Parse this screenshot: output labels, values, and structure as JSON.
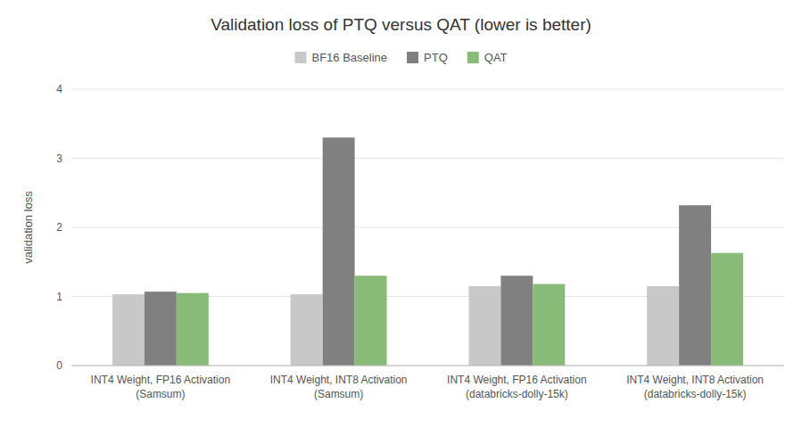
{
  "chart_data": {
    "type": "bar",
    "title": "Validation loss of PTQ versus QAT (lower is better)",
    "y_label": "validation loss",
    "categories": [
      "INT4 Weight, FP16 Activation\n(Samsum)",
      "INT4 Weight, INT8 Activation\n(Samsum)",
      "INT4 Weight, FP16 Activation\n(databricks-dolly-15k)",
      "INT4 Weight, INT8 Activation\n(databricks-dolly-15k)"
    ],
    "series": [
      {
        "name": "BF16 Baseline",
        "color": "#c8c8c8",
        "values": [
          1.03,
          1.03,
          1.15,
          1.15
        ]
      },
      {
        "name": "PTQ",
        "color": "#808080",
        "values": [
          1.07,
          3.3,
          1.3,
          2.32
        ]
      },
      {
        "name": "QAT",
        "color": "#88bb77",
        "values": [
          1.05,
          1.3,
          1.18,
          1.63
        ]
      }
    ],
    "ylim": [
      0,
      4
    ],
    "yticks": [
      0,
      1,
      2,
      3,
      4
    ],
    "grid": true,
    "legend": "top"
  }
}
